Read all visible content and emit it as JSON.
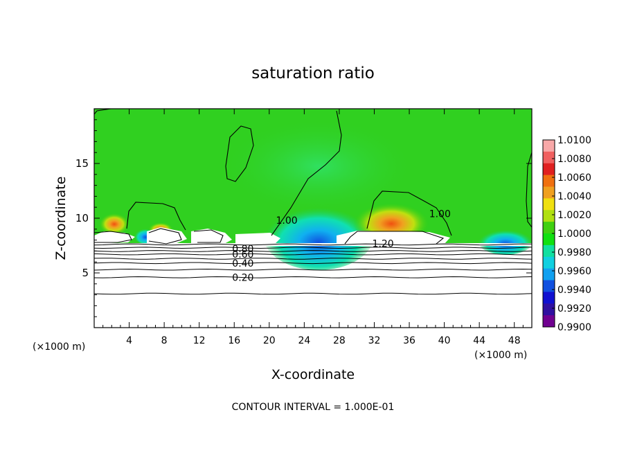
{
  "chart_data": {
    "type": "heatmap",
    "title": "saturation ratio",
    "xlabel": "X-coordinate",
    "ylabel": "Z-coordinate",
    "x_unit_left": "(×1000 m)",
    "x_unit_right": "(×1000 m)",
    "xlim": [
      0,
      50
    ],
    "ylim": [
      0,
      20
    ],
    "x_ticks": [
      4,
      8,
      12,
      16,
      20,
      24,
      28,
      32,
      36,
      40,
      44,
      48
    ],
    "y_ticks": [
      5,
      10,
      15
    ],
    "footer": "CONTOUR INTERVAL = 1.000E-01",
    "colorbar": {
      "labels": [
        "1.0100",
        "1.0080",
        "1.0060",
        "1.0040",
        "1.0020",
        "1.0000",
        "0.9980",
        "0.9960",
        "0.9940",
        "0.9920",
        "0.9900"
      ],
      "colors": [
        "#f8a8a8",
        "#f06060",
        "#e02020",
        "#f07010",
        "#f0a020",
        "#f0e010",
        "#b0e010",
        "#40d010",
        "#10e010",
        "#10e0a0",
        "#10d0e0",
        "#10a0f0",
        "#1050e0",
        "#1010d0",
        "#3010a0",
        "#700090"
      ]
    },
    "contour_labels": [
      {
        "text": "1.00",
        "x": 22,
        "z": 9.8
      },
      {
        "text": "1.00",
        "x": 39.5,
        "z": 10.4
      },
      {
        "text": "1.20",
        "x": 33,
        "z": 7.7
      },
      {
        "text": "0.80",
        "x": 17,
        "z": 7.2
      },
      {
        "text": "0.60",
        "x": 17,
        "z": 6.7
      },
      {
        "text": "0.40",
        "x": 17,
        "z": 5.9
      },
      {
        "text": "0.20",
        "x": 17,
        "z": 4.6
      }
    ],
    "contour_levels_z": [
      3.1,
      4.6,
      5.3,
      5.9,
      6.3,
      6.7,
      7.0,
      7.3,
      7.6
    ]
  }
}
